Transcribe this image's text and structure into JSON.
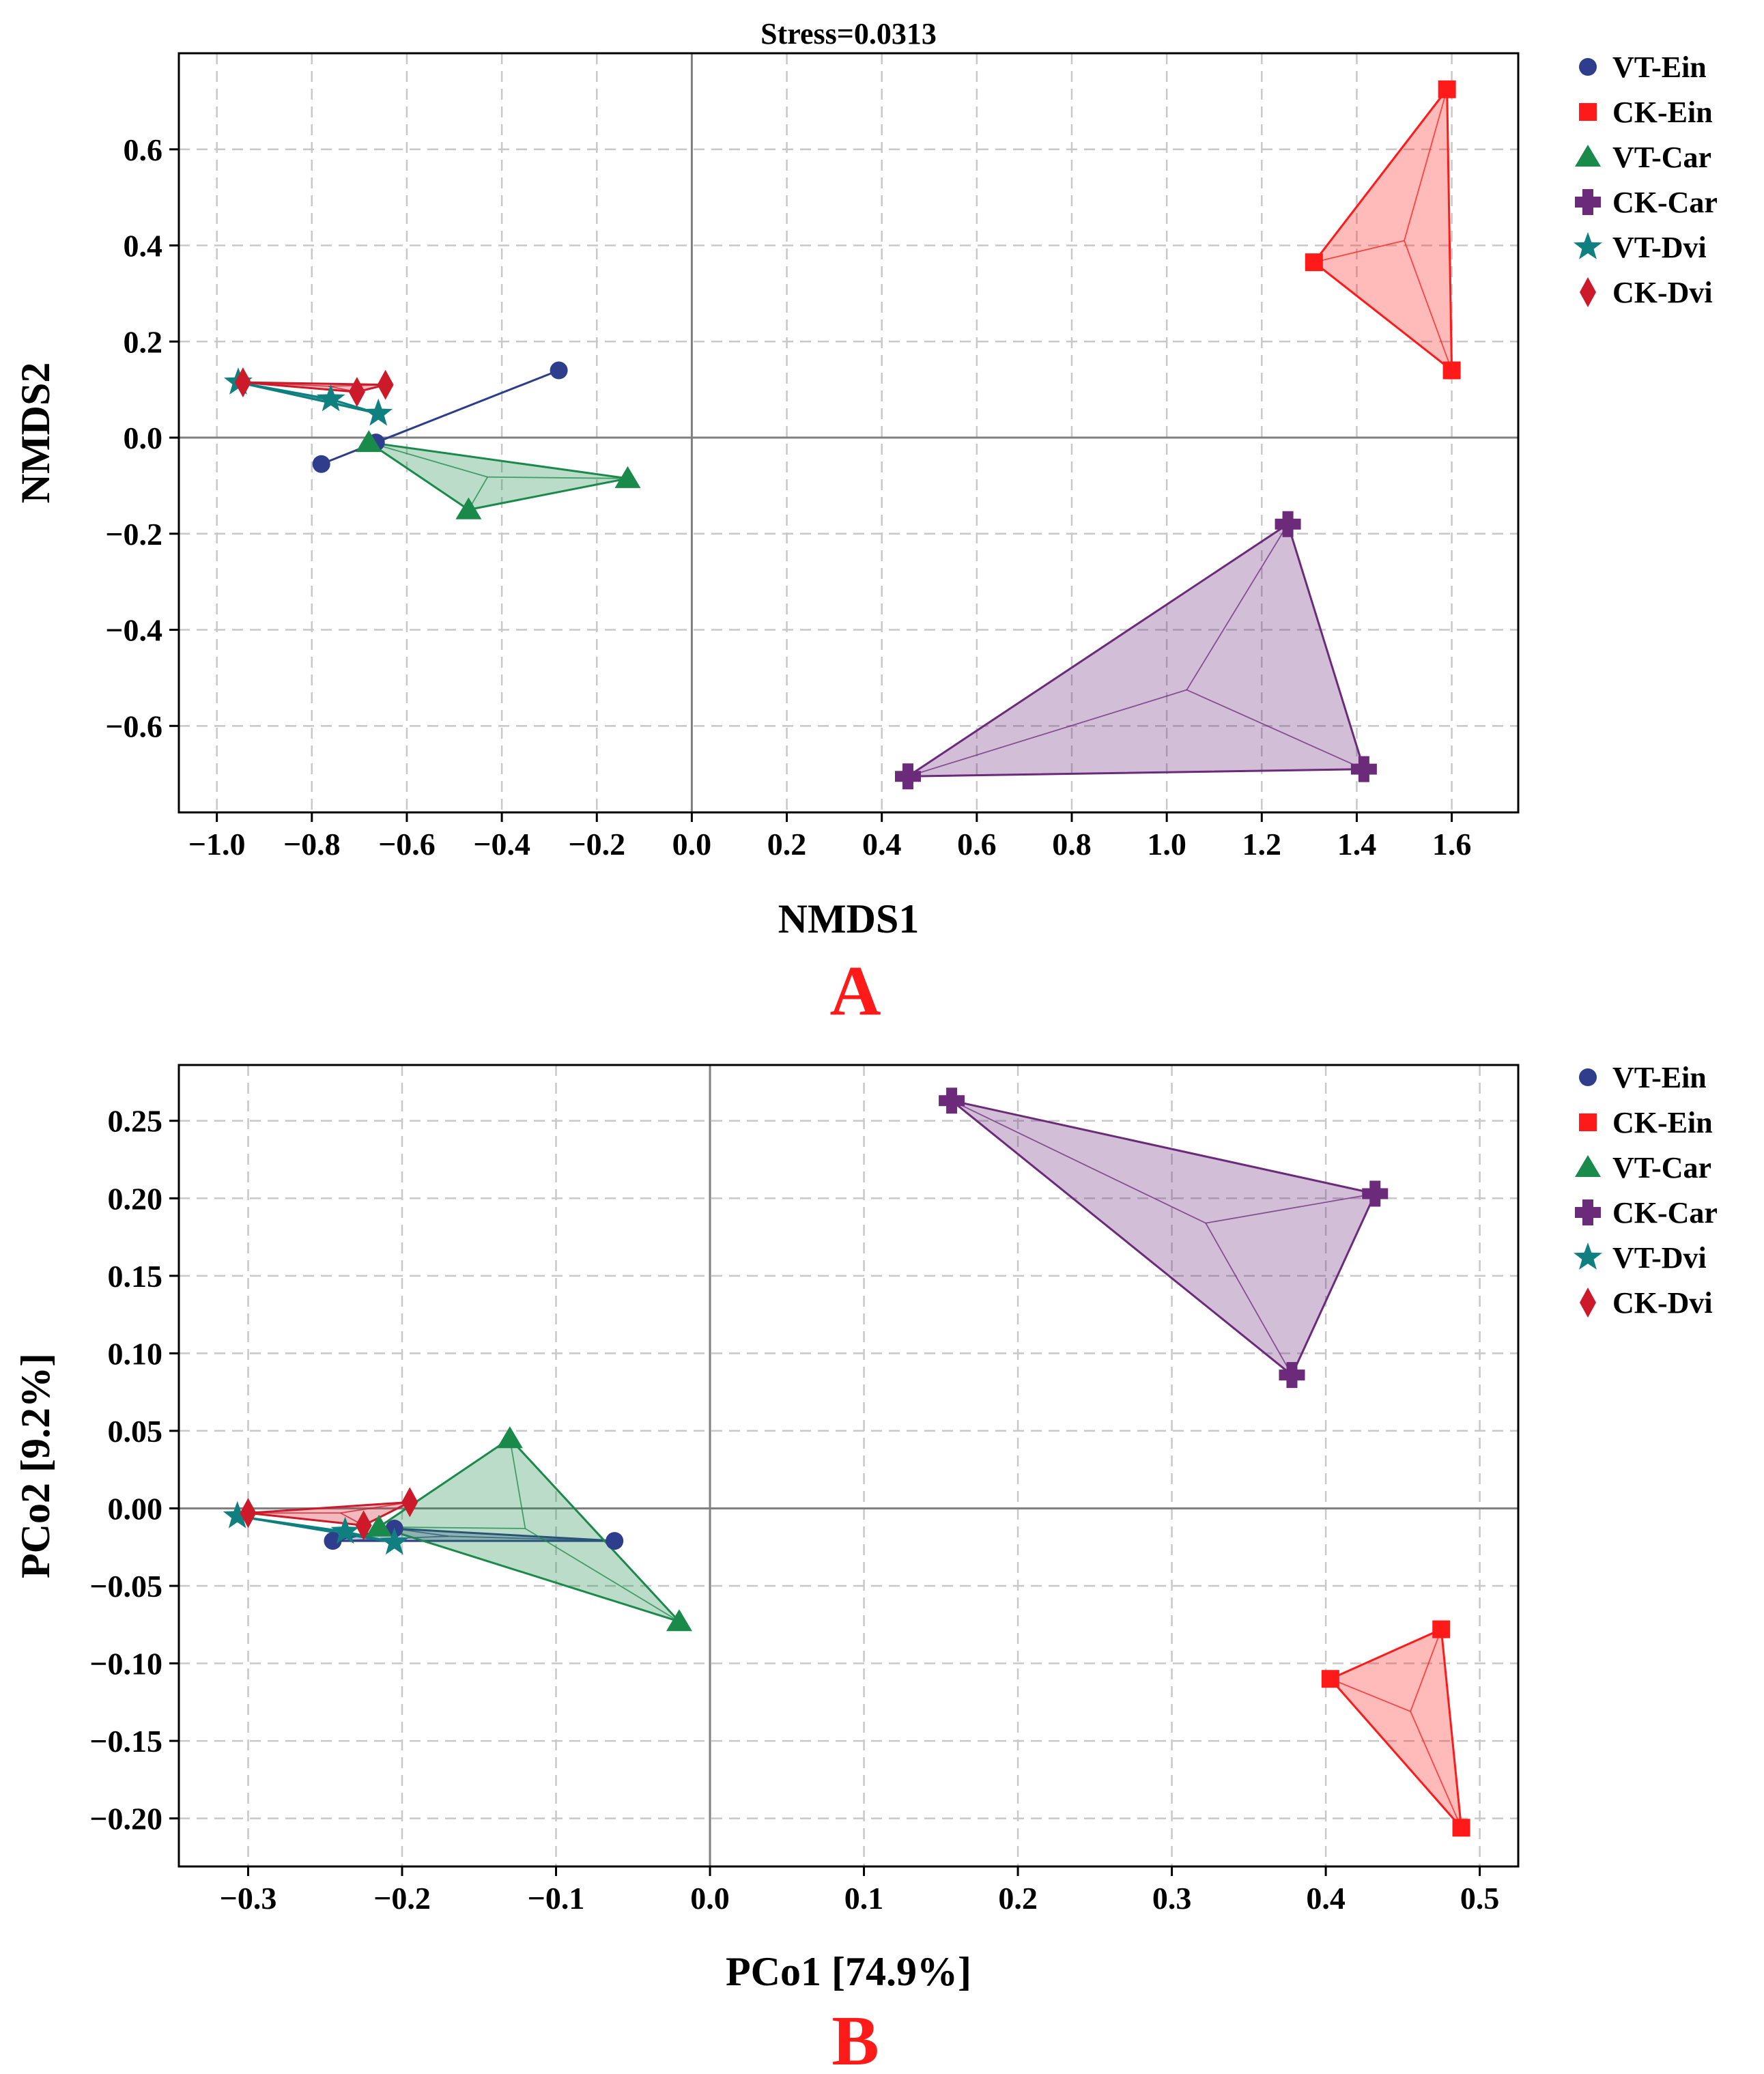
{
  "chart_data": [
    {
      "type": "scatter",
      "panel_label": "A",
      "title": "Stress=0.0313",
      "xlabel": "NMDS1",
      "ylabel": "NMDS2",
      "xlim": [
        -1.08,
        1.74
      ],
      "ylim": [
        -0.78,
        0.8
      ],
      "xticks": [
        -1.0,
        -0.8,
        -0.6,
        -0.4,
        -0.2,
        0.0,
        0.2,
        0.4,
        0.6,
        0.8,
        1.0,
        1.2,
        1.4,
        1.6
      ],
      "xtick_labels": [
        "−1.0",
        "−0.8",
        "−0.6",
        "−0.4",
        "−0.2",
        "0.0",
        "0.2",
        "0.4",
        "0.6",
        "0.8",
        "1.0",
        "1.2",
        "1.4",
        "1.6"
      ],
      "yticks": [
        -0.6,
        -0.4,
        -0.2,
        0.0,
        0.2,
        0.4,
        0.6
      ],
      "ytick_labels": [
        "−0.6",
        "−0.4",
        "−0.2",
        "0.0",
        "0.2",
        "0.4",
        "0.6"
      ],
      "grid": true,
      "legend_position": "outside-right",
      "series": [
        {
          "name": "VT-Ein",
          "marker": "circle",
          "color": "#2e3e8c",
          "points": [
            [
              -0.28,
              0.14
            ],
            [
              -0.78,
              -0.055
            ],
            [
              -0.665,
              -0.01
            ]
          ],
          "centroid": [
            -0.575,
            0.025
          ]
        },
        {
          "name": "CK-Ein",
          "marker": "square",
          "color": "#ff1a1a",
          "points": [
            [
              1.59,
              0.725
            ],
            [
              1.31,
              0.365
            ],
            [
              1.6,
              0.14
            ]
          ],
          "centroid": [
            1.5,
            0.41
          ]
        },
        {
          "name": "VT-Car",
          "marker": "triangle",
          "color": "#1a8a4a",
          "points": [
            [
              -0.68,
              -0.01
            ],
            [
              -0.47,
              -0.15
            ],
            [
              -0.135,
              -0.085
            ]
          ],
          "centroid": [
            -0.43,
            -0.082
          ]
        },
        {
          "name": "CK-Car",
          "marker": "plus",
          "color": "#6b2a7a",
          "points": [
            [
              1.255,
              -0.18
            ],
            [
              1.415,
              -0.69
            ],
            [
              0.455,
              -0.705
            ]
          ],
          "centroid": [
            1.042,
            -0.525
          ]
        },
        {
          "name": "VT-Dvi",
          "marker": "star",
          "color": "#0f7f7f",
          "points": [
            [
              -0.955,
              0.115
            ],
            [
              -0.76,
              0.08
            ],
            [
              -0.66,
              0.05
            ]
          ],
          "centroid": [
            -0.79,
            0.082
          ]
        },
        {
          "name": "CK-Dvi",
          "marker": "diamond",
          "color": "#cc1a2a",
          "points": [
            [
              -0.945,
              0.115
            ],
            [
              -0.705,
              0.095
            ],
            [
              -0.645,
              0.11
            ]
          ],
          "centroid": [
            -0.765,
            0.107
          ]
        }
      ]
    },
    {
      "type": "scatter",
      "panel_label": "B",
      "title": "",
      "xlabel": "PCo1 [74.9%]",
      "ylabel": "PCo2 [9.2%]",
      "xlim": [
        -0.345,
        0.525
      ],
      "ylim": [
        -0.231,
        0.286
      ],
      "xticks": [
        -0.3,
        -0.2,
        -0.1,
        0.0,
        0.1,
        0.2,
        0.3,
        0.4,
        0.5
      ],
      "xtick_labels": [
        "−0.3",
        "−0.2",
        "−0.1",
        "0.0",
        "0.1",
        "0.2",
        "0.3",
        "0.4",
        "0.5"
      ],
      "yticks": [
        -0.2,
        -0.15,
        -0.1,
        -0.05,
        0.0,
        0.05,
        0.1,
        0.15,
        0.2,
        0.25
      ],
      "ytick_labels": [
        "−0.20",
        "−0.15",
        "−0.10",
        "−0.05",
        "0.00",
        "0.05",
        "0.10",
        "0.15",
        "0.20",
        "0.25"
      ],
      "grid": true,
      "legend_position": "outside-right",
      "series": [
        {
          "name": "VT-Ein",
          "marker": "circle",
          "color": "#2e3e8c",
          "points": [
            [
              -0.245,
              -0.021
            ],
            [
              -0.205,
              -0.013
            ],
            [
              -0.062,
              -0.021
            ]
          ],
          "centroid": [
            -0.17,
            -0.018
          ]
        },
        {
          "name": "CK-Ein",
          "marker": "square",
          "color": "#ff1a1a",
          "points": [
            [
              0.475,
              -0.078
            ],
            [
              0.403,
              -0.11
            ],
            [
              0.488,
              -0.206
            ]
          ],
          "centroid": [
            0.455,
            -0.131
          ]
        },
        {
          "name": "VT-Car",
          "marker": "triangle",
          "color": "#1a8a4a",
          "points": [
            [
              -0.13,
              0.045
            ],
            [
              -0.215,
              -0.012
            ],
            [
              -0.02,
              -0.073
            ]
          ],
          "centroid": [
            -0.12,
            -0.013
          ]
        },
        {
          "name": "CK-Car",
          "marker": "plus",
          "color": "#6b2a7a",
          "points": [
            [
              0.157,
              0.263
            ],
            [
              0.432,
              0.203
            ],
            [
              0.378,
              0.086
            ]
          ],
          "centroid": [
            0.322,
            0.184
          ]
        },
        {
          "name": "VT-Dvi",
          "marker": "star",
          "color": "#0f7f7f",
          "points": [
            [
              -0.307,
              -0.005
            ],
            [
              -0.237,
              -0.015
            ],
            [
              -0.205,
              -0.022
            ]
          ],
          "centroid": [
            -0.25,
            -0.014
          ]
        },
        {
          "name": "CK-Dvi",
          "marker": "diamond",
          "color": "#cc1a2a",
          "points": [
            [
              -0.3,
              -0.003
            ],
            [
              -0.225,
              -0.011
            ],
            [
              -0.195,
              0.004
            ]
          ],
          "centroid": [
            -0.24,
            -0.003
          ]
        }
      ]
    }
  ]
}
